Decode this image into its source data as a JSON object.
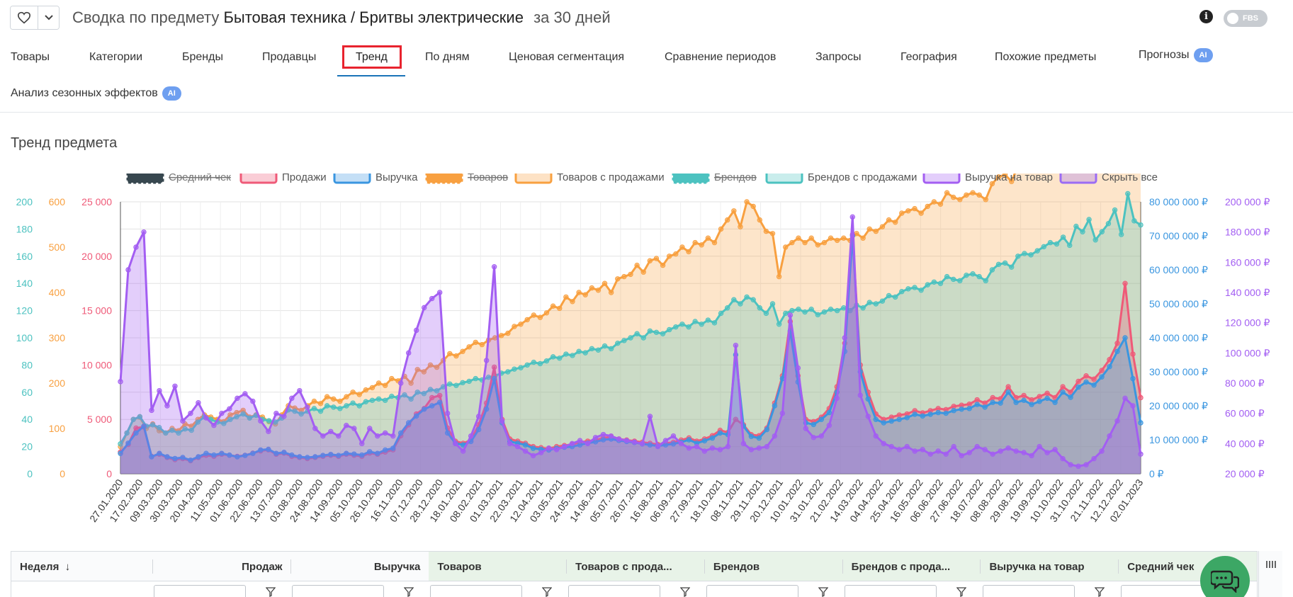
{
  "header": {
    "title_prefix": "Сводка по предмету",
    "subject": "Бытовая техника / Бритвы электрические",
    "period": "за 30 дней",
    "fbs_label": "FBS"
  },
  "tabs": [
    {
      "label": "Товары"
    },
    {
      "label": "Категории"
    },
    {
      "label": "Бренды"
    },
    {
      "label": "Продавцы"
    },
    {
      "label": "Тренд",
      "active": true
    },
    {
      "label": "По дням"
    },
    {
      "label": "Ценовая сегментация"
    },
    {
      "label": "Сравнение периодов"
    },
    {
      "label": "Запросы"
    },
    {
      "label": "География"
    },
    {
      "label": "Похожие предметы"
    },
    {
      "label": "Прогнозы",
      "badge": "AI"
    },
    {
      "label": "Анализ сезонных эффектов",
      "badge": "AI"
    }
  ],
  "section_title": "Тренд предмета",
  "colors": {
    "check": "#37474f",
    "sales": "#ef5a78",
    "revenue": "#3a96e0",
    "goods": "#f8a040",
    "goods_sales": "#f8a040",
    "brands": "#4cc2c0",
    "brands_sales": "#4cc2c0",
    "rev_per_item": "#a35ef2",
    "hide_all": "#9b6cf4"
  },
  "chart_data": {
    "type": "line",
    "title": "",
    "xlabel": "",
    "ylabel": "",
    "x_tick_labels": [
      "27.01.2020",
      "17.02.2020",
      "09.03.2020",
      "30.03.2020",
      "20.04.2020",
      "11.05.2020",
      "01.06.2020",
      "22.06.2020",
      "13.07.2020",
      "03.08.2020",
      "24.08.2020",
      "14.09.2020",
      "05.10.2020",
      "26.10.2020",
      "16.11.2020",
      "07.12.2020",
      "28.12.2020",
      "18.01.2021",
      "08.02.2021",
      "01.03.2021",
      "22.03.2021",
      "12.04.2021",
      "03.05.2021",
      "24.05.2021",
      "14.06.2021",
      "05.07.2021",
      "26.07.2021",
      "16.08.2021",
      "06.09.2021",
      "27.09.2021",
      "18.10.2021",
      "08.11.2021",
      "29.11.2021",
      "20.12.2021",
      "10.01.2022",
      "31.01.2022",
      "21.02.2022",
      "14.03.2022",
      "04.04.2022",
      "25.04.2022",
      "16.05.2022",
      "06.06.2022",
      "27.06.2022",
      "18.07.2022",
      "08.08.2022",
      "29.08.2022",
      "19.09.2022",
      "10.10.2022",
      "31.10.2022",
      "21.11.2022",
      "12.12.2022",
      "02.01.2023"
    ],
    "axes": {
      "brands": {
        "range": [
          0,
          200
        ],
        "ticks": [
          "0",
          "20",
          "40",
          "60",
          "80",
          "100",
          "120",
          "140",
          "160",
          "180",
          "200"
        ]
      },
      "goods": {
        "range": [
          0,
          600
        ],
        "ticks": [
          "0",
          "100",
          "200",
          "300",
          "400",
          "500",
          "600"
        ]
      },
      "sales": {
        "range": [
          0,
          25000
        ],
        "ticks": [
          "0",
          "5 000",
          "10 000",
          "15 000",
          "20 000",
          "25 000"
        ]
      },
      "revenue": {
        "range": [
          0,
          80000000
        ],
        "ticks": [
          "0 ₽",
          "10 000 000 ₽",
          "20 000 000 ₽",
          "30 000 000 ₽",
          "40 000 000 ₽",
          "50 000 000 ₽",
          "60 000 000 ₽",
          "70 000 000 ₽",
          "80 000 000 ₽"
        ]
      },
      "rev_per_item": {
        "range": [
          20000,
          200000
        ],
        "ticks": [
          "20 000 ₽",
          "40 000 ₽",
          "60 000 ₽",
          "80 000 ₽",
          "100 000 ₽",
          "120 000 ₽",
          "140 000 ₽",
          "160 000 ₽",
          "180 000 ₽",
          "200 000 ₽"
        ]
      }
    },
    "grid": true,
    "legend_position": "top",
    "legend": [
      {
        "key": "check",
        "label": "Средний чек",
        "hidden": true
      },
      {
        "key": "sales",
        "label": "Продажи",
        "hidden": false
      },
      {
        "key": "revenue",
        "label": "Выручка",
        "hidden": false
      },
      {
        "key": "goods",
        "label": "Товаров",
        "hidden": true
      },
      {
        "key": "goods_sales",
        "label": "Товаров с продажами",
        "hidden": false
      },
      {
        "key": "brands",
        "label": "Брендов",
        "hidden": true
      },
      {
        "key": "brands_sales",
        "label": "Брендов с продажами",
        "hidden": false
      },
      {
        "key": "rev_per_item",
        "label": "Выручка на товар",
        "hidden": false
      },
      {
        "key": "hide_all",
        "label": "Скрыть все",
        "hidden": false
      }
    ],
    "series": [
      {
        "key": "goods_sales",
        "name": "Товаров с продажами",
        "axis": "goods",
        "values": [
          60,
          90,
          120,
          125,
          100,
          110,
          95,
          90,
          100,
          95,
          110,
          105,
          120,
          130,
          125,
          120,
          115,
          130,
          135,
          140,
          125,
          130,
          125,
          115,
          110,
          130,
          150,
          145,
          140,
          150,
          160,
          155,
          170,
          165,
          160,
          170,
          180,
          175,
          185,
          190,
          200,
          195,
          210,
          205,
          215,
          200,
          230,
          225,
          240,
          235,
          250,
          265,
          260,
          270,
          280,
          290,
          285,
          295,
          300,
          305,
          310,
          325,
          330,
          340,
          350,
          345,
          355,
          370,
          365,
          390,
          380,
          400,
          395,
          410,
          405,
          420,
          400,
          430,
          435,
          440,
          460,
          445,
          470,
          475,
          460,
          480,
          485,
          500,
          490,
          510,
          505,
          520,
          510,
          540,
          560,
          580,
          545,
          600,
          590,
          560,
          535,
          530,
          435,
          500,
          510,
          520,
          510,
          520,
          505,
          510,
          520,
          515,
          520,
          515,
          530,
          520,
          540,
          535,
          545,
          560,
          555,
          575,
          580,
          585,
          575,
          590,
          600,
          595,
          620,
          610,
          605,
          615,
          620,
          615,
          605,
          640,
          655,
          660,
          645,
          680,
          690,
          685,
          700,
          710,
          730,
          725,
          740,
          710,
          780,
          760,
          800,
          730,
          760,
          780,
          830,
          740,
          900,
          790,
          780
        ]
      },
      {
        "key": "brands_sales",
        "name": "Брендов с продажами",
        "axis": "brands",
        "values": [
          22,
          30,
          40,
          42,
          35,
          36,
          34,
          30,
          32,
          30,
          33,
          32,
          38,
          42,
          40,
          38,
          37,
          40,
          42,
          44,
          41,
          43,
          40,
          39,
          38,
          41,
          47,
          46,
          44,
          46,
          48,
          46,
          50,
          49,
          48,
          50,
          52,
          50,
          53,
          54,
          55,
          54,
          57,
          56,
          58,
          55,
          60,
          59,
          62,
          61,
          64,
          66,
          65,
          67,
          68,
          70,
          69,
          71,
          72,
          74,
          75,
          77,
          78,
          80,
          82,
          81,
          83,
          86,
          85,
          88,
          87,
          90,
          89,
          92,
          91,
          94,
          92,
          96,
          98,
          100,
          103,
          100,
          105,
          104,
          103,
          106,
          108,
          110,
          108,
          112,
          110,
          113,
          111,
          118,
          122,
          128,
          125,
          130,
          128,
          122,
          118,
          125,
          110,
          118,
          120,
          121,
          119,
          121,
          117,
          119,
          121,
          120,
          122,
          120,
          124,
          122,
          126,
          125,
          127,
          131,
          130,
          134,
          136,
          137,
          135,
          139,
          141,
          140,
          145,
          143,
          142,
          146,
          147,
          145,
          142,
          150,
          154,
          155,
          152,
          160,
          162,
          161,
          164,
          167,
          170,
          169,
          174,
          168,
          182,
          178,
          187,
          172,
          178,
          184,
          194,
          176,
          206,
          186,
          183
        ]
      },
      {
        "key": "sales",
        "name": "Продажи",
        "axis": "sales",
        "values": [
          2000,
          2700,
          4200,
          4300,
          1600,
          1800,
          1500,
          1300,
          1400,
          1200,
          1500,
          1700,
          1600,
          1800,
          1700,
          1600,
          1700,
          1900,
          2100,
          2200,
          1800,
          1900,
          1600,
          1500,
          1400,
          1500,
          1600,
          1700,
          1600,
          1800,
          1700,
          1600,
          1900,
          1800,
          2000,
          2200,
          3500,
          4500,
          5500,
          6000,
          7000,
          7200,
          4200,
          3000,
          2800,
          3100,
          4500,
          6500,
          9800,
          5000,
          3200,
          3000,
          2800,
          2500,
          2400,
          2300,
          2500,
          2600,
          2700,
          2900,
          3000,
          3100,
          3300,
          3400,
          3200,
          3100,
          3000,
          2900,
          2800,
          2700,
          2800,
          2900,
          3100,
          3300,
          3000,
          3200,
          3500,
          4000,
          3800,
          5000,
          4500,
          3600,
          3500,
          4200,
          6500,
          9000,
          14000,
          9000,
          5000,
          4800,
          5200,
          6000,
          8000,
          12000,
          22000,
          10000,
          7500,
          5500,
          5000,
          5200,
          5400,
          5500,
          5800,
          5600,
          5800,
          6000,
          5900,
          6200,
          6300,
          6400,
          6800,
          6500,
          7000,
          6900,
          8000,
          7000,
          7200,
          6800,
          7100,
          7400,
          7000,
          8000,
          7500,
          8500,
          9000,
          8700,
          9500,
          10500,
          12000,
          17500,
          11000,
          7000
        ]
      },
      {
        "key": "revenue",
        "name": "Выручка",
        "axis": "revenue",
        "values": [
          6000000,
          9000000,
          12000000,
          14000000,
          5000000,
          6000000,
          5000000,
          4500000,
          4800000,
          4000000,
          5000000,
          6000000,
          5500000,
          6000000,
          5500000,
          5000000,
          5400000,
          6000000,
          7000000,
          7200000,
          6000000,
          6300000,
          5500000,
          5000000,
          4800000,
          5000000,
          5400000,
          5700000,
          5400000,
          6000000,
          5800000,
          5500000,
          6500000,
          6000000,
          7000000,
          7500000,
          12000000,
          15000000,
          17000000,
          19000000,
          20000000,
          21000000,
          12000000,
          9000000,
          8500000,
          9500000,
          13000000,
          19000000,
          28000000,
          15000000,
          9500000,
          9000000,
          8500000,
          7500000,
          7200000,
          7000000,
          7500000,
          7800000,
          8000000,
          8500000,
          9000000,
          9400000,
          10000000,
          10200000,
          9800000,
          9500000,
          9200000,
          8800000,
          8500000,
          8200000,
          8500000,
          8800000,
          9300000,
          10000000,
          9000000,
          9700000,
          10500000,
          12000000,
          11500000,
          35000000,
          14000000,
          11000000,
          10500000,
          13000000,
          20000000,
          28000000,
          42000000,
          27000000,
          15000000,
          14500000,
          16000000,
          18000000,
          24000000,
          36000000,
          70000000,
          30000000,
          22000000,
          16000000,
          15000000,
          15500000,
          16000000,
          16500000,
          17500000,
          17000000,
          17500000,
          18000000,
          17800000,
          18600000,
          19000000,
          19200000,
          20400000,
          19600000,
          21000000,
          20800000,
          24000000,
          21000000,
          21600000,
          20400000,
          21300000,
          22200000,
          21000000,
          24000000,
          22500000,
          25500000,
          27000000,
          26100000,
          28500000,
          31500000,
          36000000,
          40000000,
          28000000,
          15000000
        ]
      },
      {
        "key": "rev_per_item",
        "name": "Выручка на товар",
        "axis": "rev_per_item",
        "values": [
          81000,
          155000,
          170000,
          180000,
          62000,
          75000,
          65000,
          78000,
          55000,
          60000,
          67000,
          57000,
          52000,
          60000,
          63000,
          70000,
          73000,
          68000,
          55000,
          48000,
          60000,
          58000,
          70000,
          75000,
          64000,
          50000,
          45000,
          48000,
          45000,
          52000,
          50000,
          40000,
          50000,
          45000,
          47000,
          45000,
          80000,
          100000,
          115000,
          130000,
          136000,
          140000,
          60000,
          40000,
          35000,
          45000,
          58000,
          95000,
          157000,
          55000,
          40000,
          38000,
          35000,
          32000,
          34000,
          37000,
          36000,
          38000,
          40000,
          42000,
          40000,
          44000,
          46000,
          45000,
          43000,
          42000,
          41000,
          40000,
          58000,
          38000,
          42000,
          45000,
          40000,
          37000,
          38000,
          35000,
          37000,
          36000,
          38000,
          105000,
          40000,
          36000,
          37000,
          38000,
          45000,
          60000,
          125000,
          90000,
          50000,
          44000,
          45000,
          52000,
          70000,
          110000,
          190000,
          72000,
          58000,
          45000,
          40000,
          38000,
          36000,
          38000,
          35000,
          36000,
          33000,
          35000,
          33000,
          38000,
          32000,
          34000,
          38000,
          36000,
          33000,
          35000,
          37000,
          35000,
          34000,
          32000,
          38000,
          34000,
          36000,
          30000,
          26000,
          25000,
          26000,
          30000,
          35000,
          45000,
          55000,
          70000,
          65000,
          33000
        ]
      }
    ]
  },
  "table": {
    "columns": [
      {
        "label": "Неделя",
        "sort": "↓"
      },
      {
        "label": "Продаж"
      },
      {
        "label": "Выручка"
      },
      {
        "label": "Товаров"
      },
      {
        "label": "Товаров с прода..."
      },
      {
        "label": "Брендов"
      },
      {
        "label": "Брендов с прода..."
      },
      {
        "label": "Выручка на товар"
      },
      {
        "label": "Средний чек"
      }
    ]
  }
}
